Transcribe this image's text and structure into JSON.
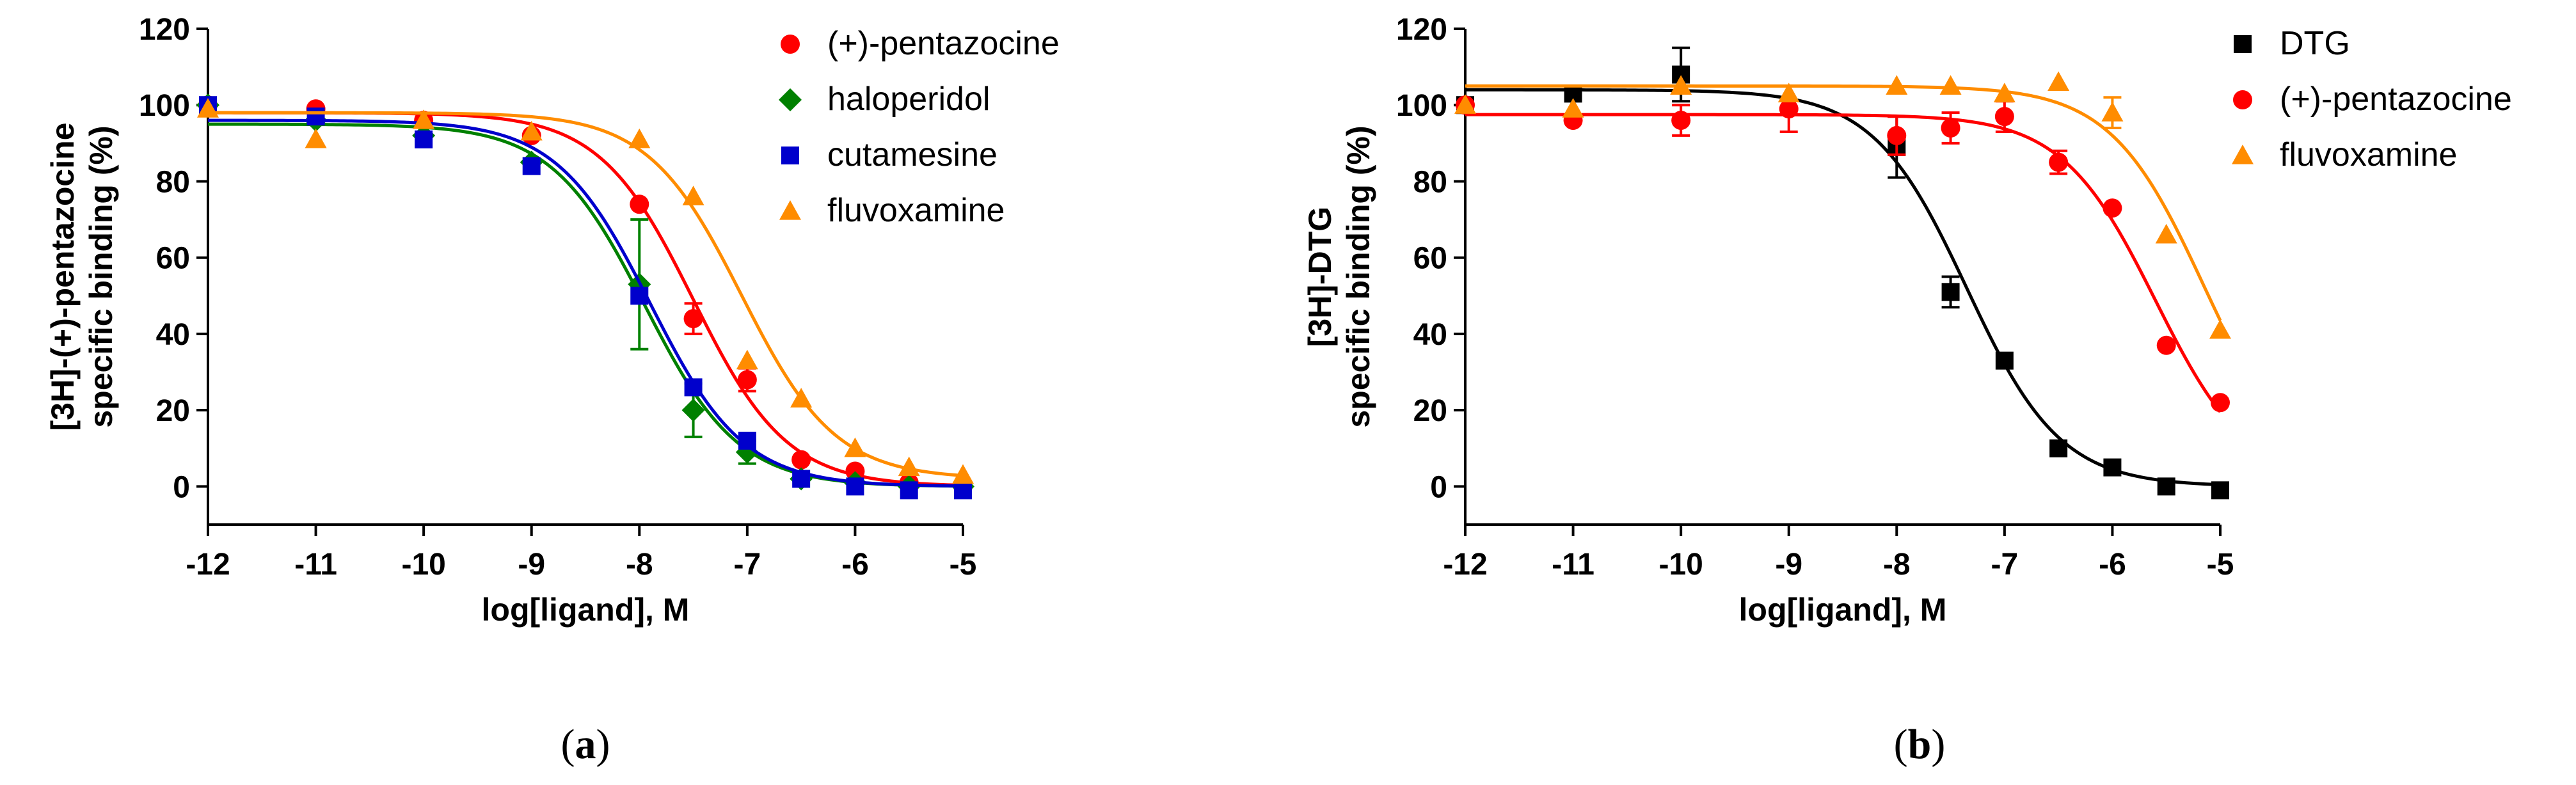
{
  "chart_data": [
    {
      "type": "scatter",
      "panel_label": "a",
      "xlabel": "log[ligand], M",
      "ylabel_line1": "[3H]-(+)-pentazocine",
      "ylabel_line2": "specific binding (%)",
      "xlim": [
        -12,
        -5
      ],
      "ylim": [
        -10,
        120
      ],
      "xticks": [
        -12,
        -11,
        -10,
        -9,
        -8,
        -7,
        -6,
        -5
      ],
      "yticks": [
        0,
        20,
        40,
        60,
        80,
        100,
        120
      ],
      "grid": false,
      "legend_position": "top-right",
      "series": [
        {
          "name": "(+)-pentazocine",
          "color": "#ff0000",
          "marker": "circle",
          "fit": {
            "top": 98,
            "bottom": 0,
            "logIC50": -7.5
          },
          "points": [
            {
              "x": -12,
              "y": 100
            },
            {
              "x": -11,
              "y": 99
            },
            {
              "x": -10,
              "y": 96
            },
            {
              "x": -9,
              "y": 92
            },
            {
              "x": -8,
              "y": 74
            },
            {
              "x": -7.5,
              "y": 44,
              "err": 4
            },
            {
              "x": -7,
              "y": 28,
              "err": 3
            },
            {
              "x": -6.5,
              "y": 7
            },
            {
              "x": -6,
              "y": 4
            },
            {
              "x": -5.5,
              "y": 1
            },
            {
              "x": -5,
              "y": 0
            }
          ]
        },
        {
          "name": "haloperidol",
          "color": "#008000",
          "marker": "diamond",
          "fit": {
            "top": 95,
            "bottom": 0,
            "logIC50": -7.95
          },
          "points": [
            {
              "x": -12,
              "y": 100
            },
            {
              "x": -11,
              "y": 96
            },
            {
              "x": -10,
              "y": 92
            },
            {
              "x": -9,
              "y": 85
            },
            {
              "x": -8,
              "y": 53,
              "err": 17
            },
            {
              "x": -7.5,
              "y": 20,
              "err": 7
            },
            {
              "x": -7,
              "y": 9,
              "err": 3
            },
            {
              "x": -6.5,
              "y": 2
            },
            {
              "x": -6,
              "y": 1
            },
            {
              "x": -5.5,
              "y": 0
            },
            {
              "x": -5,
              "y": 0
            }
          ]
        },
        {
          "name": "cutamesine",
          "color": "#0000cc",
          "marker": "square",
          "fit": {
            "top": 96,
            "bottom": 0,
            "logIC50": -7.9
          },
          "points": [
            {
              "x": -12,
              "y": 100
            },
            {
              "x": -11,
              "y": 97
            },
            {
              "x": -10,
              "y": 91
            },
            {
              "x": -9,
              "y": 84
            },
            {
              "x": -8,
              "y": 50
            },
            {
              "x": -7.5,
              "y": 26
            },
            {
              "x": -7,
              "y": 12
            },
            {
              "x": -6.5,
              "y": 2
            },
            {
              "x": -6,
              "y": 0
            },
            {
              "x": -5.5,
              "y": -1
            },
            {
              "x": -5,
              "y": -1
            }
          ]
        },
        {
          "name": "fluvoxamine",
          "color": "#ff8c00",
          "marker": "triangle",
          "fit": {
            "top": 98,
            "bottom": 2,
            "logIC50": -7.05
          },
          "points": [
            {
              "x": -12,
              "y": 99
            },
            {
              "x": -11,
              "y": 91
            },
            {
              "x": -10,
              "y": 96
            },
            {
              "x": -9,
              "y": 93
            },
            {
              "x": -8,
              "y": 91
            },
            {
              "x": -7.5,
              "y": 76
            },
            {
              "x": -7,
              "y": 33
            },
            {
              "x": -6.5,
              "y": 23
            },
            {
              "x": -6,
              "y": 10
            },
            {
              "x": -5.5,
              "y": 5
            },
            {
              "x": -5,
              "y": 3
            }
          ]
        }
      ]
    },
    {
      "type": "scatter",
      "panel_label": "b",
      "xlabel": "log[ligand], M",
      "ylabel_line1": "[3H]-DTG",
      "ylabel_line2": "specific binding (%)",
      "xlim": [
        -12,
        -5
      ],
      "ylim": [
        -10,
        120
      ],
      "xticks": [
        -12,
        -11,
        -10,
        -9,
        -8,
        -7,
        -6,
        -5
      ],
      "yticks": [
        0,
        20,
        40,
        60,
        80,
        100,
        120
      ],
      "grid": false,
      "legend_position": "top-right",
      "series": [
        {
          "name": "DTG",
          "color": "#000000",
          "marker": "square",
          "fit": {
            "top": 104,
            "bottom": 0,
            "logIC50": -7.35
          },
          "points": [
            {
              "x": -12,
              "y": 100
            },
            {
              "x": -11,
              "y": 103
            },
            {
              "x": -10,
              "y": 108,
              "err": 7
            },
            {
              "x": -8,
              "y": 89,
              "err": 8
            },
            {
              "x": -7.5,
              "y": 51,
              "err": 4
            },
            {
              "x": -7,
              "y": 33
            },
            {
              "x": -6.5,
              "y": 10
            },
            {
              "x": -6,
              "y": 5
            },
            {
              "x": -5.5,
              "y": 0
            },
            {
              "x": -5,
              "y": -1
            }
          ]
        },
        {
          "name": "(+)-pentazocine",
          "color": "#ff0000",
          "marker": "circle",
          "fit": {
            "top": 97.5,
            "bottom": 0,
            "logIC50": -5.6
          },
          "points": [
            {
              "x": -12,
              "y": 100
            },
            {
              "x": -11,
              "y": 96
            },
            {
              "x": -10,
              "y": 96,
              "err": 4
            },
            {
              "x": -9,
              "y": 99,
              "err": 6
            },
            {
              "x": -8,
              "y": 92,
              "err": 5
            },
            {
              "x": -7.5,
              "y": 94,
              "err": 4
            },
            {
              "x": -7,
              "y": 97,
              "err": 4
            },
            {
              "x": -6.5,
              "y": 85,
              "err": 3
            },
            {
              "x": -6,
              "y": 73
            },
            {
              "x": -5.5,
              "y": 37
            },
            {
              "x": -5,
              "y": 22
            }
          ]
        },
        {
          "name": "fluvoxamine",
          "color": "#ff8c00",
          "marker": "triangle",
          "fit": {
            "top": 105,
            "bottom": 0,
            "logIC50": -5.15
          },
          "points": [
            {
              "x": -12,
              "y": 100
            },
            {
              "x": -11,
              "y": 99
            },
            {
              "x": -10,
              "y": 105
            },
            {
              "x": -9,
              "y": 103
            },
            {
              "x": -8,
              "y": 105
            },
            {
              "x": -7.5,
              "y": 105
            },
            {
              "x": -7,
              "y": 103
            },
            {
              "x": -6.5,
              "y": 106
            },
            {
              "x": -6,
              "y": 98,
              "err": 4
            },
            {
              "x": -5.5,
              "y": 66
            },
            {
              "x": -5,
              "y": 41
            }
          ]
        }
      ]
    }
  ]
}
